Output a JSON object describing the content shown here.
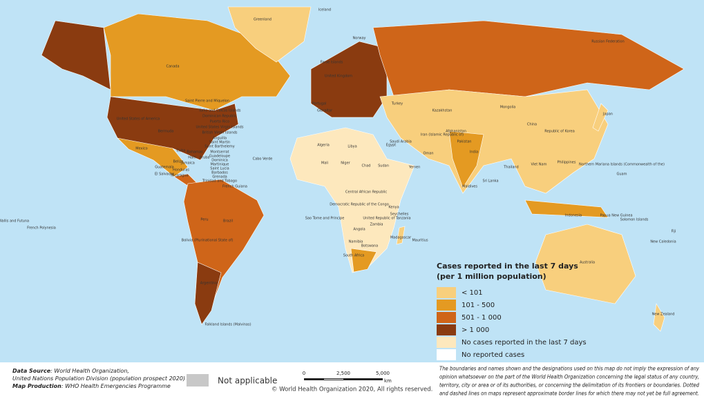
{
  "map": {
    "labels": [
      "Greenland",
      "Iceland",
      "Canada",
      "United States of America",
      "Mexico",
      "Cuba",
      "Bahamas",
      "Bermuda",
      "Saint Pierre and Miquelon",
      "Turks and Caicos Islands",
      "Dominican Republic",
      "Puerto Rico",
      "United States Virgin Islands",
      "British Virgin Islands",
      "Anguilla",
      "Saint Martin",
      "Saint Barthelemy",
      "Montserrat",
      "Guadeloupe",
      "Dominica",
      "Martinique",
      "Saint Lucia",
      "Barbados",
      "Grenada",
      "Trinidad and Tobago",
      "Aruba",
      "Guatemala",
      "El Salvador",
      "Belize",
      "Honduras",
      "Nicaragua",
      "Jamaica",
      "Haiti",
      "Brazil",
      "Peru",
      "Bolivia (Plurinational State of)",
      "Argentina",
      "Falkland Islands (Malvinas)",
      "French Guiana",
      "Cabo Verde",
      "Algeria",
      "Libya",
      "Niger",
      "Chad",
      "Sudan",
      "Mali",
      "Egypt",
      "Central African Republic",
      "Democratic Republic of the Congo",
      "Kenya",
      "Angola",
      "Zambia",
      "Namibia",
      "Botswana",
      "South Africa",
      "Madagascar",
      "Mauritius",
      "Seychelles",
      "United Republic of Tanzania",
      "Sao Tome and Principe",
      "Russian Federation",
      "Kazakhstan",
      "Mongolia",
      "China",
      "Republic of Korea",
      "Japan",
      "India",
      "Iran (Islamic Republic of)",
      "Afghanistan",
      "Pakistan",
      "Saudi Arabia",
      "Oman",
      "Yemen",
      "Thailand",
      "Viet Nam",
      "Philippines",
      "Maldives",
      "Sri Lanka",
      "Indonesia",
      "Papua New Guinea",
      "Solomon Islands",
      "Australia",
      "New Zealand",
      "New Caledonia",
      "Fiji",
      "Guam",
      "Northern Mariana Islands (Commonwealth of the)",
      "French Polynesia",
      "Wallis and Futuna",
      "Faroe Islands",
      "Norway",
      "United Kingdom",
      "Portugal",
      "Gibraltar",
      "Turkey"
    ]
  },
  "legend": {
    "title": [
      "Cases reported in the last 7 days",
      "(per 1 million population)"
    ],
    "items": [
      {
        "label": "< 101",
        "color": "#f8cf7d"
      },
      {
        "label": "101 - 500",
        "color": "#e49a22"
      },
      {
        "label": "501 - 1 000",
        "color": "#cf6519"
      },
      {
        "label": "> 1 000",
        "color": "#8a3b10"
      },
      {
        "label": "No cases reported in the last 7 days",
        "color": "#fde8bd"
      },
      {
        "label": "No reported cases",
        "color": "#ffffff"
      }
    ]
  },
  "footer": {
    "source": [
      {
        "key": "Data Source",
        "text": ": World Health Organization,"
      },
      {
        "text": "United Nations Population Division (population prospect 2020)"
      },
      {
        "key": "Map Production",
        "text": ": WHO Health Emergencies Programme"
      }
    ],
    "not_applicable": {
      "label": "Not applicable",
      "color": "#c8c8c8"
    },
    "scale": {
      "ticks": [
        "0",
        "2,500",
        "5,000"
      ],
      "unit": "km"
    },
    "copyright": "© World Health Organization 2020, All rights reserved.",
    "disclaimer": [
      "The boundaries and names shown and the designations used on this map do not imply the expression of any",
      "opinion whatsoever on the part of the World Health Organization concerning the legal status of any country,",
      "territory, city or area or of its authorities, or concerning the delimitation of its frontiers or boundaries. Dotted",
      "and dashed lines on maps represent approximate border lines for which there may not yet be full agreement."
    ]
  }
}
